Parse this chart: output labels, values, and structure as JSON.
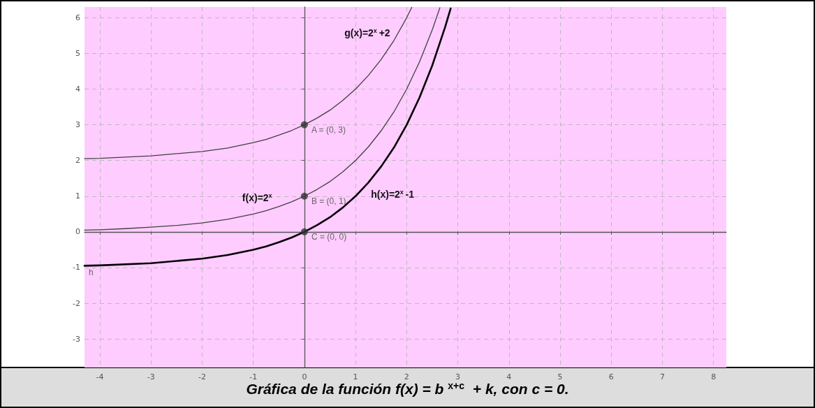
{
  "chart_data": {
    "type": "line",
    "title": "Gráfica de la función f(x) = b$^{x+c}$ + k, con c = 0.",
    "xlim": [
      -4.3,
      8.25
    ],
    "ylim": [
      -3.8,
      6.3
    ],
    "xticks": [
      -4,
      -3,
      -2,
      -1,
      0,
      1,
      2,
      3,
      4,
      5,
      6,
      7,
      8
    ],
    "yticks": [
      -3,
      -2,
      -1,
      0,
      1,
      2,
      3,
      4,
      5,
      6
    ],
    "grid": true,
    "line_style": "solid",
    "marker": "none",
    "series": [
      {
        "color": "#404040",
        "x": [
          -4.3,
          -4,
          -3.5,
          -3,
          -2.5,
          -2,
          -1.5,
          -1,
          -0.75,
          -0.5,
          -0.25,
          0,
          0.25,
          0.5,
          0.75,
          1,
          1.25,
          1.5,
          1.75,
          2,
          2.25,
          2.5,
          2.65
        ],
        "values": [
          0.05,
          0.06,
          0.09,
          0.13,
          0.18,
          0.25,
          0.35,
          0.5,
          0.59,
          0.71,
          0.84,
          1,
          1.19,
          1.41,
          1.68,
          2,
          2.38,
          2.83,
          3.36,
          4,
          4.76,
          5.66,
          6.28
        ]
      },
      {
        "color": "#404040",
        "x": [
          -4.3,
          -4,
          -3,
          -2,
          -1.5,
          -1,
          -0.75,
          -0.5,
          -0.25,
          0,
          0.25,
          0.5,
          0.75,
          1,
          1.25,
          1.5,
          1.75,
          2,
          2.1
        ],
        "values": [
          2.05,
          2.06,
          2.13,
          2.25,
          2.35,
          2.5,
          2.59,
          2.71,
          2.84,
          3,
          3.19,
          3.41,
          3.68,
          4,
          4.38,
          4.83,
          5.36,
          6,
          6.29
        ]
      },
      {
        "color": "#000000",
        "x": [
          -4.3,
          -4,
          -3,
          -2,
          -1.5,
          -1,
          -0.75,
          -0.5,
          -0.25,
          0,
          0.25,
          0.5,
          0.75,
          1,
          1.25,
          1.5,
          1.75,
          2,
          2.25,
          2.5,
          2.75,
          2.86
        ],
        "values": [
          -0.95,
          -0.94,
          -0.88,
          -0.75,
          -0.65,
          -0.5,
          -0.41,
          -0.29,
          -0.16,
          0,
          0.19,
          0.41,
          0.68,
          1,
          1.38,
          1.83,
          2.36,
          3,
          3.76,
          4.66,
          5.73,
          6.26
        ]
      },
      {
        "type": "scatter",
        "color": "#333333",
        "marker": "circle",
        "x": [
          0,
          0,
          0
        ],
        "values": [
          3,
          1,
          0
        ]
      }
    ],
    "annotations": [
      {
        "text": "g(x)=2$^{x}$+2",
        "x": 1.72,
        "y": 5.3
      },
      {
        "text": "f(x)=2$^{x}$",
        "x": -0.55,
        "y": 0.68
      },
      {
        "text": "h(x)=2$^{x}$-1",
        "x": 1.22,
        "y": 1.33
      },
      {
        "text": "h",
        "x": -4.3,
        "y": -0.95
      },
      {
        "text": "A = (0, 3)",
        "x": 0,
        "y": 3
      },
      {
        "text": "B = (0, 1)",
        "x": 0,
        "y": 1
      },
      {
        "text": "C = (0, 0)",
        "x": 0,
        "y": 0
      }
    ]
  }
}
